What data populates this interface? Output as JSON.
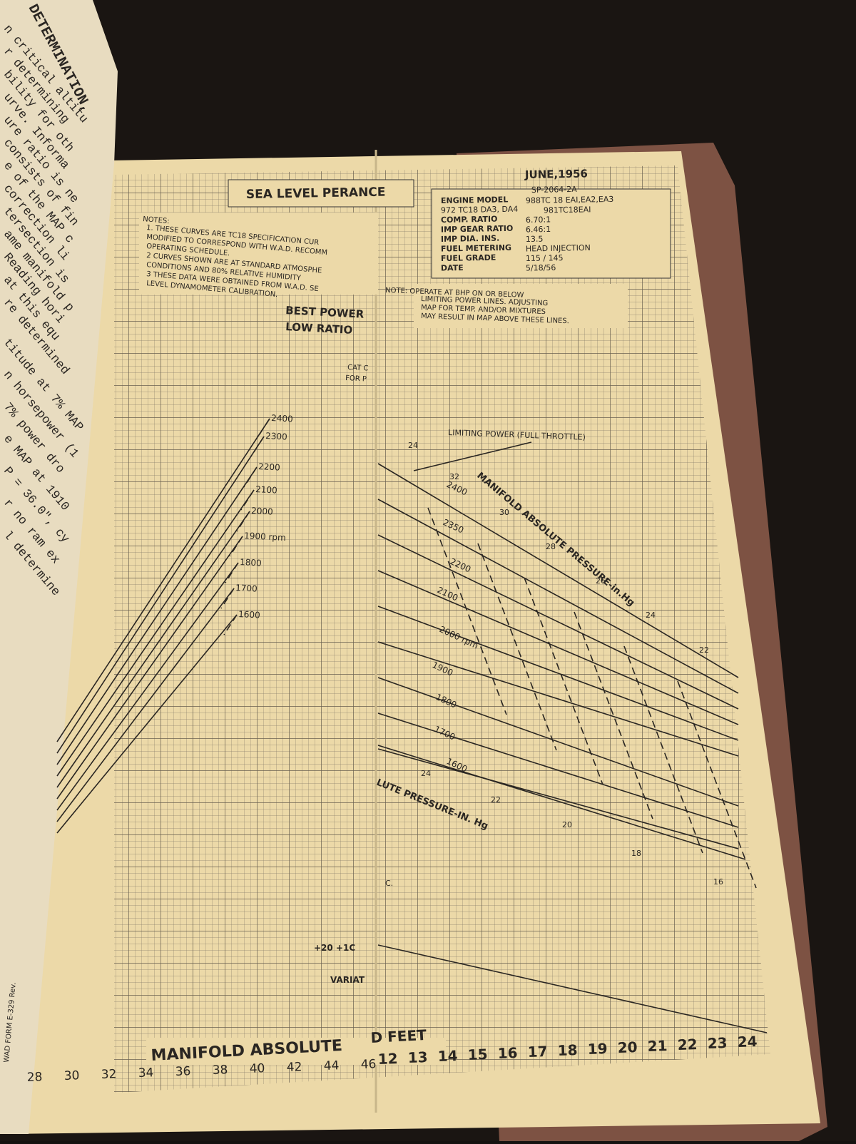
{
  "left_page": {
    "heading": "DETERMINATION,",
    "lines": [
      "n critical altitu",
      "r determining",
      "bility for oth",
      "urve. Informa",
      "ure ratio is ne",
      "consists of fin",
      "e of the MAP c",
      "correction li",
      "tersection is",
      "ame manifold p",
      "Reading hori",
      "at this equ",
      "re determined",
      "titude at 7% MAP",
      "n horsepower (1",
      "7% power dro",
      "e MAP at 1910",
      "P = 36.0\", cy",
      "r no ram ex",
      "l determine"
    ]
  },
  "header": {
    "date": "JUNE,1956",
    "code": "SP-2064-2A",
    "title": "SEA LEVEL PERANCE"
  },
  "engine_info": [
    [
      "ENGINE MODEL",
      "988TC 18 EAI,EA2,EA3"
    ],
    [
      "972 TC18 DA3, DA4",
      "981TC18EAI"
    ],
    [
      "COMP. RATIO",
      "6.70:1"
    ],
    [
      "IMP GEAR RATIO",
      "6.46:1"
    ],
    [
      "IMP DIA. INS.",
      "13.5"
    ],
    [
      "FUEL METERING",
      "HEAD INJECTION"
    ],
    [
      "FUEL GRADE",
      "115 / 145"
    ],
    [
      "DATE",
      "5/18/56"
    ]
  ],
  "notes": {
    "heading": "NOTES:",
    "lines": [
      "1. THESE CURVES ARE TC18 SPECIFICATION CUR",
      "MODIFIED TO CORRESPOND WITH W.A.D. RECOMM",
      "OPERATING SCHEDULE.",
      "2 CURVES SHOWN ARE AT STANDARD ATMOSPHE",
      "CONDITIONS AND 80% RELATIVE HUMIDITY",
      "3 THESE DATA WERE OBTAINED FROM W.A.D. SE",
      "LEVEL DYNAMOMETER CALIBRATION."
    ]
  },
  "note_right": [
    "NOTE: OPERATE AT BHP ON OR BELOW",
    "LIMITING POWER LINES. ADJUSTING",
    "MAP FOR TEMP. AND/OR MIXTURES",
    "MAY RESULT IN MAP ABOVE THESE LINES."
  ],
  "left_chart": {
    "heading": [
      "BEST POWER",
      "LOW RATIO"
    ],
    "small": [
      "CAT C",
      "FOR P"
    ],
    "rpm_labels": [
      "2400",
      "2300",
      "2200",
      "2100",
      "2000",
      "1900 rpm",
      "1800",
      "1700",
      "1600"
    ],
    "x_labels": [
      "28",
      "30",
      "32",
      "34",
      "36",
      "38",
      "40",
      "42",
      "44",
      "46"
    ],
    "axis_title": "MANIFOLD ABSOLUTE"
  },
  "right_chart": {
    "limiting": "LIMITING POWER (FULL THROTTLE)",
    "top_label": "24",
    "map_title": "MANIFOLD ABSOLUTE PRESSURE-in.Hg",
    "rpm_labels": [
      "2400",
      "2350",
      "2200",
      "2100",
      "2000 rpm",
      "1900",
      "1800",
      "1700",
      "1600"
    ],
    "map_labels": [
      "32",
      "30",
      "28",
      "26",
      "24",
      "22"
    ],
    "lower_title": "LUTE PRESSURE-IN. Hg",
    "lower_labels": [
      "24",
      "22",
      "20",
      "18",
      "16"
    ],
    "marker": "C.",
    "temp": "+20 +1C",
    "variation": "VARIAT",
    "x_labels": [
      "12",
      "13",
      "14",
      "15",
      "16",
      "17",
      "18",
      "19",
      "20",
      "21",
      "22",
      "23",
      "24"
    ],
    "axis_title": "D FEET"
  },
  "form_id": "WAD FORM E-329 Rev."
}
